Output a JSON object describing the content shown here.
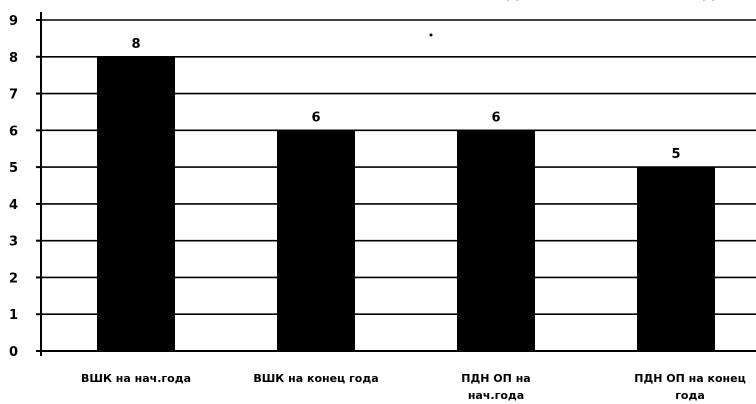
{
  "chart_data": {
    "type": "bar",
    "categories": [
      [
        "ВШК на нач.года"
      ],
      [
        "ВШК на конец года"
      ],
      [
        "ПДН ОП на",
        "нач.года"
      ],
      [
        "ПДН ОП на конец",
        "года"
      ]
    ],
    "values": [
      8,
      6,
      6,
      5
    ],
    "data_labels": [
      "8",
      "6",
      "6",
      "5"
    ],
    "yticks": [
      "0",
      "1",
      "2",
      "3",
      "4",
      "5",
      "6",
      "7",
      "8",
      "9"
    ],
    "ylim": [
      0,
      9
    ],
    "grid": true,
    "bar_color": "#000000",
    "grid_color": "#000000"
  }
}
